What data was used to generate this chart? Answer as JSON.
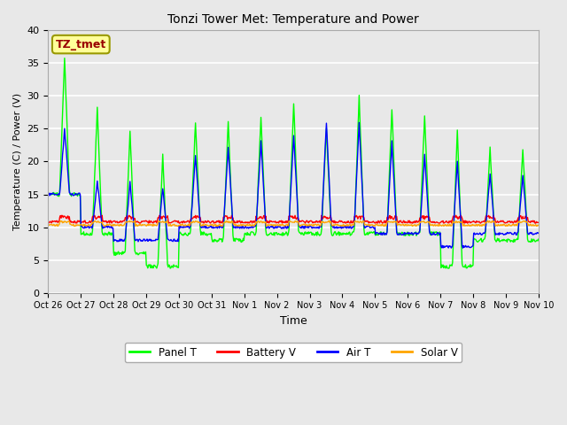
{
  "title": "Tonzi Tower Met: Temperature and Power",
  "xlabel": "Time",
  "ylabel": "Temperature (C) / Power (V)",
  "ylim": [
    0,
    40
  ],
  "fig_facecolor": "#e8e8e8",
  "plot_facecolor": "#e8e8e8",
  "annotation_text": "TZ_tmet",
  "annotation_facecolor": "#ffff99",
  "annotation_edgecolor": "#999900",
  "annotation_textcolor": "#990000",
  "legend_labels": [
    "Panel T",
    "Battery V",
    "Air T",
    "Solar V"
  ],
  "legend_colors": [
    "#00ff00",
    "#ff0000",
    "#0000ff",
    "#ffa500"
  ],
  "x_tick_labels": [
    "Oct 26",
    "Oct 27",
    "Oct 28",
    "Oct 29",
    "Oct 30",
    "Oct 31",
    "Nov 1",
    "Nov 2",
    "Nov 3",
    "Nov 4",
    "Nov 5",
    "Nov 6",
    "Nov 7",
    "Nov 8",
    "Nov 9",
    "Nov 10"
  ],
  "grid_color": "#ffffff",
  "line_width": 1.0,
  "n_days": 15,
  "n_per_day": 48,
  "panel_peaks": [
    36,
    28,
    24.5,
    21,
    26,
    26,
    27,
    29,
    25,
    30,
    28,
    27,
    25,
    22,
    22
  ],
  "panel_troughs": [
    15,
    9,
    6,
    4,
    9,
    8,
    9,
    9,
    9,
    9,
    9,
    9,
    4,
    8,
    8
  ],
  "air_peaks": [
    25,
    17,
    17,
    16,
    21,
    22,
    23,
    24,
    26,
    26,
    23,
    21,
    20,
    18,
    18
  ],
  "air_troughs": [
    15,
    10,
    8,
    8,
    10,
    10,
    10,
    10,
    10,
    10,
    9,
    9,
    7,
    9,
    9
  ],
  "battery_base": 11.0,
  "solar_base": 10.5
}
